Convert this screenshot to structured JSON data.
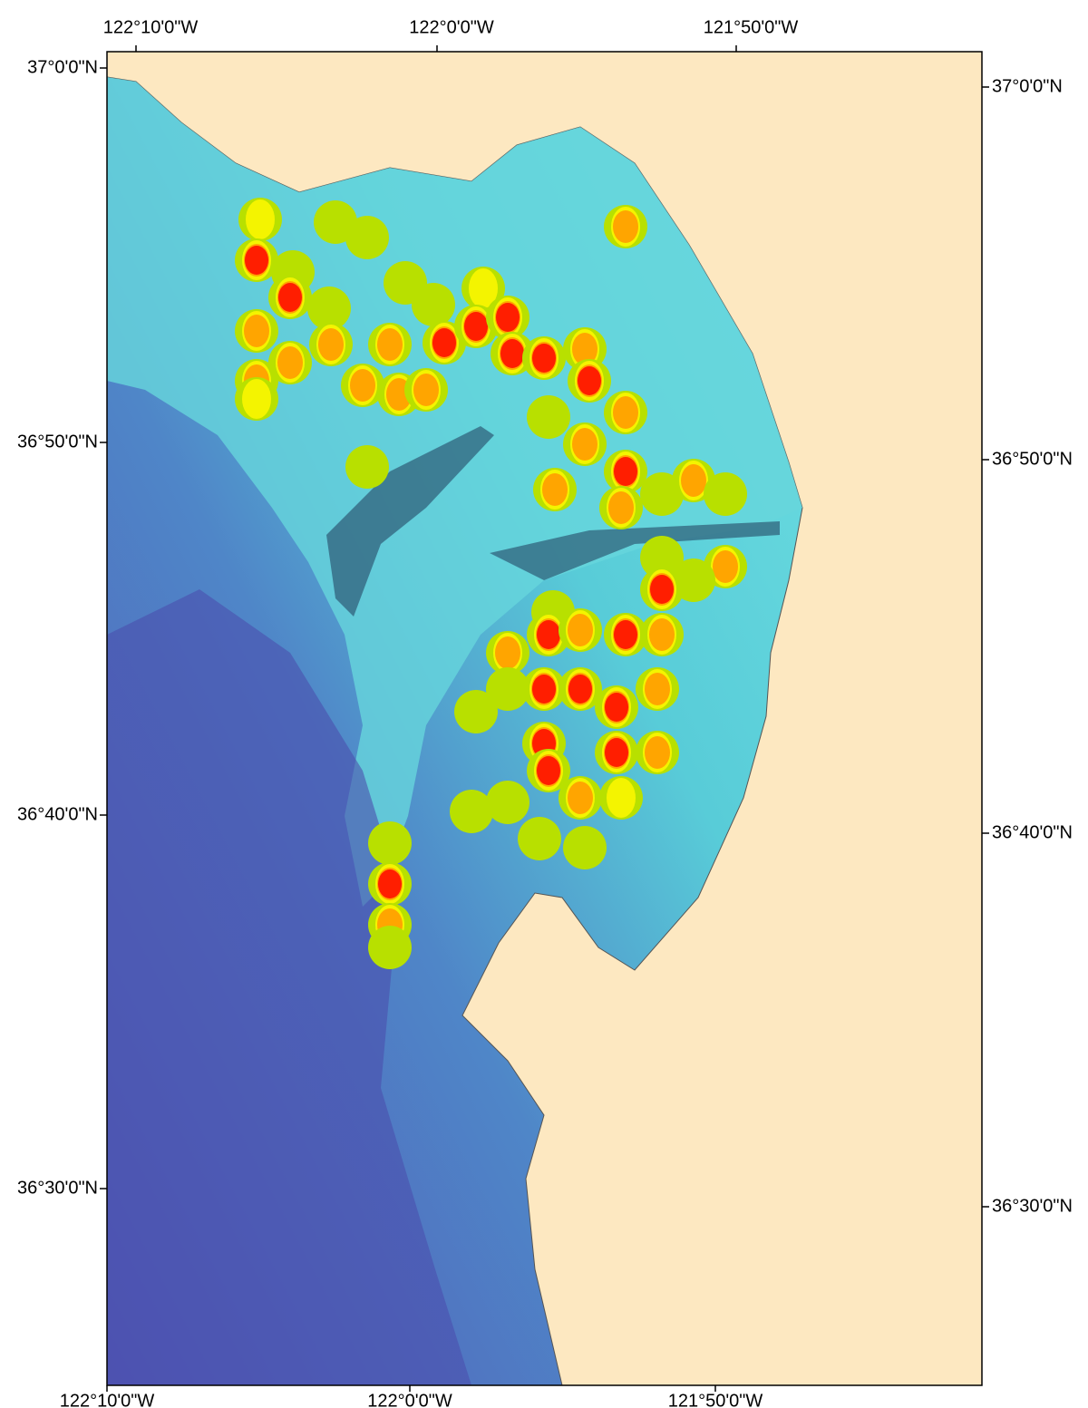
{
  "map": {
    "top_labels": [
      "122°10'0\"W",
      "122°0'0\"W",
      "121°50'0\"W"
    ],
    "bottom_labels": [
      "122°10'0\"W",
      "122°0'0\"W",
      "121°50'0\"W"
    ],
    "left_labels": [
      "37°0'0\"N",
      "36°50'0\"N",
      "36°40'0\"N",
      "36°30'0\"N"
    ],
    "right_labels": [
      "37°0'0\"N",
      "36°50'0\"N",
      "36°40'0\"N",
      "36°30'0\"N"
    ]
  }
}
